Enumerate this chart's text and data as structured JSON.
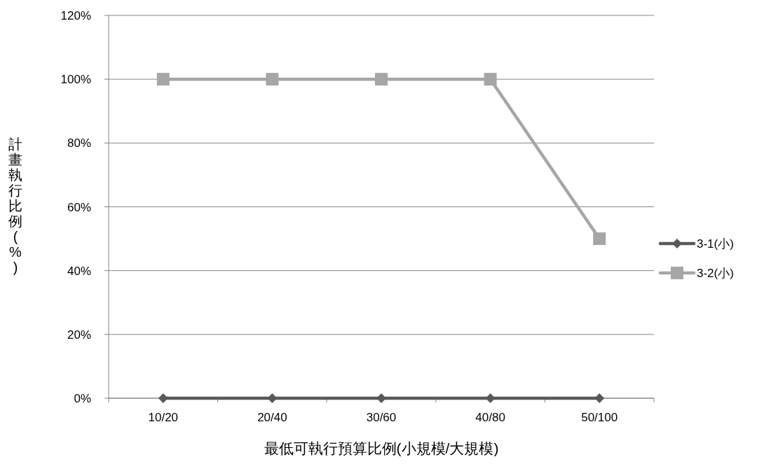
{
  "chart_data": {
    "type": "line",
    "xlabel": "最低可執行預算比例(小規模/大規模)",
    "ylabel": "計畫執行比例(%)",
    "categories": [
      "10/20",
      "20/40",
      "30/60",
      "40/80",
      "50/100"
    ],
    "series": [
      {
        "name": "3-1(小)",
        "color": "#595959",
        "marker": "diamond",
        "values": [
          0,
          0,
          0,
          0,
          0
        ]
      },
      {
        "name": "3-2(小)",
        "color": "#a6a6a6",
        "marker": "square",
        "values": [
          100,
          100,
          100,
          100,
          50
        ]
      }
    ],
    "ylim": [
      0,
      120
    ],
    "yticks": [
      {
        "value": 0,
        "label": "0%"
      },
      {
        "value": 20,
        "label": "20%"
      },
      {
        "value": 40,
        "label": "40%"
      },
      {
        "value": 60,
        "label": "60%"
      },
      {
        "value": 80,
        "label": "80%"
      },
      {
        "value": 100,
        "label": "100%"
      },
      {
        "value": 120,
        "label": "120%"
      }
    ],
    "grid": "y",
    "legend": "right",
    "line_style": "solid"
  }
}
